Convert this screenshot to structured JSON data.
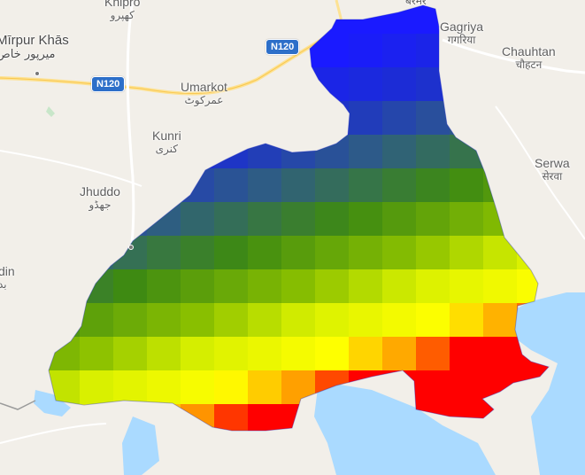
{
  "map": {
    "places": [
      {
        "id": "mirpur-khas",
        "name": "Mīrpur Khās",
        "native": "میرپور خاص"
      },
      {
        "id": "khipro",
        "name": "Khipro",
        "native": "کھپرو"
      },
      {
        "id": "umarkot",
        "name": "Umarkot",
        "native": "عمرکوٹ"
      },
      {
        "id": "kunri",
        "name": "Kunri",
        "native": "کنری"
      },
      {
        "id": "jhuddo",
        "name": "Jhuddo",
        "native": "جھڈو"
      },
      {
        "id": "gagriya",
        "name": "Gagriya",
        "native": "गगरिया"
      },
      {
        "id": "chauhtan",
        "name": "Chauhtan",
        "native": "चौहटन"
      },
      {
        "id": "serwa",
        "name": "Serwa",
        "native": "सेरवा"
      },
      {
        "id": "badin",
        "name": "din",
        "native": "بد"
      },
      {
        "id": "barmer-edge",
        "name": "",
        "native": "बरमेर"
      }
    ],
    "roads": [
      {
        "id": "n120-north",
        "label": "N120"
      },
      {
        "id": "n120-west",
        "label": "N120"
      }
    ],
    "heatmap_colors": {
      "low": "#1a1aff",
      "low_mid": "#2d5a8a",
      "mid": "#3e8a12",
      "high_mid": "#d8f000",
      "high": "#ffff00",
      "peak": "#ff0000"
    }
  }
}
